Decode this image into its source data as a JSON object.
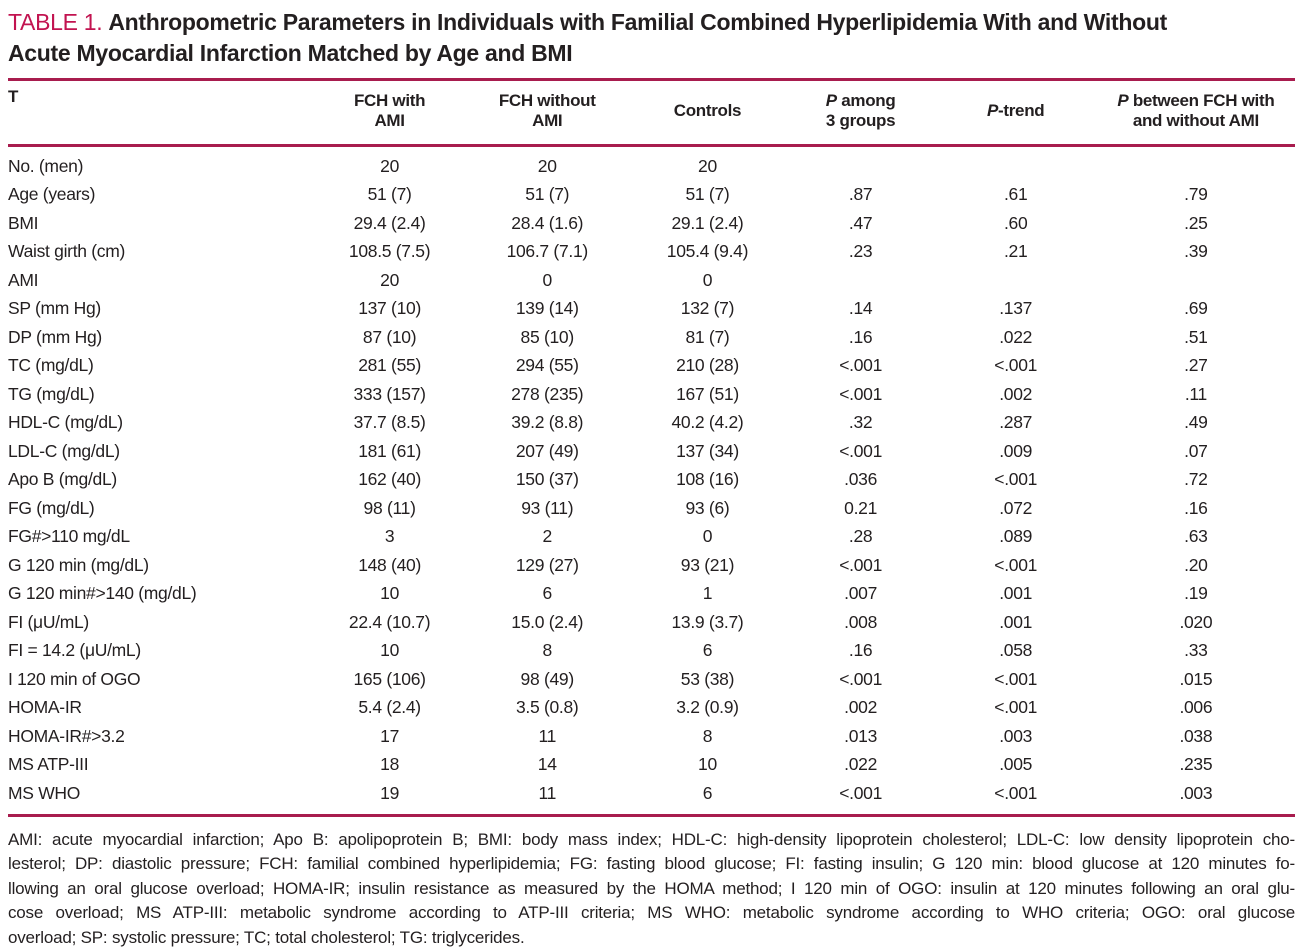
{
  "accent_color": "#a81c4e",
  "title": {
    "label": "TABLE 1.",
    "line1": "Anthropometric Parameters in Individuals with Familial Combined Hyperlipidemia With and Without",
    "line2": "Acute Myocardial Infarction Matched by Age and BMI"
  },
  "table": {
    "columns": [
      {
        "lines": [
          "T"
        ],
        "align": "left",
        "italic_p": false
      },
      {
        "lines": [
          "FCH with",
          "AMI"
        ],
        "align": "center",
        "italic_p": false
      },
      {
        "lines": [
          "FCH without",
          "AMI"
        ],
        "align": "center",
        "italic_p": false
      },
      {
        "lines": [
          "Controls"
        ],
        "align": "center",
        "italic_p": false
      },
      {
        "lines": [
          "P among",
          "3 groups"
        ],
        "align": "center",
        "italic_p": true
      },
      {
        "lines": [
          "P-trend"
        ],
        "align": "center",
        "italic_p": true
      },
      {
        "lines": [
          "P between FCH with",
          "and without AMI"
        ],
        "align": "center",
        "italic_p": true
      }
    ],
    "rows": [
      {
        "label": "No. (men)",
        "values": [
          "20",
          "20",
          "20",
          "",
          "",
          ""
        ]
      },
      {
        "label": "Age (years)",
        "values": [
          "51 (7)",
          "51 (7)",
          "51 (7)",
          ".87",
          ".61",
          ".79"
        ]
      },
      {
        "label": "BMI",
        "values": [
          "29.4 (2.4)",
          "28.4 (1.6)",
          "29.1 (2.4)",
          ".47",
          ".60",
          ".25"
        ]
      },
      {
        "label": "Waist girth (cm)",
        "values": [
          "108.5 (7.5)",
          "106.7 (7.1)",
          "105.4 (9.4)",
          ".23",
          ".21",
          ".39"
        ]
      },
      {
        "label": "AMI",
        "values": [
          "20",
          "0",
          "0",
          "",
          "",
          ""
        ]
      },
      {
        "label": "SP (mm Hg)",
        "values": [
          "137 (10)",
          "139 (14)",
          "132 (7)",
          ".14",
          ".137",
          ".69"
        ]
      },
      {
        "label": "DP (mm Hg)",
        "values": [
          "87 (10)",
          "85 (10)",
          "81 (7)",
          ".16",
          ".022",
          ".51"
        ]
      },
      {
        "label": "TC (mg/dL)",
        "values": [
          "281 (55)",
          "294 (55)",
          "210 (28)",
          "<.001",
          "<.001",
          ".27"
        ]
      },
      {
        "label": "TG (mg/dL)",
        "values": [
          "333 (157)",
          "278 (235)",
          "167 (51)",
          "<.001",
          ".002",
          ".11"
        ]
      },
      {
        "label": "HDL-C (mg/dL)",
        "values": [
          "37.7 (8.5)",
          "39.2 (8.8)",
          "40.2 (4.2)",
          ".32",
          ".287",
          ".49"
        ]
      },
      {
        "label": "LDL-C (mg/dL)",
        "values": [
          "181 (61)",
          "207 (49)",
          "137 (34)",
          "<.001",
          ".009",
          ".07"
        ]
      },
      {
        "label": "Apo B (mg/dL)",
        "values": [
          "162 (40)",
          "150 (37)",
          "108 (16)",
          ".036",
          "<.001",
          ".72"
        ]
      },
      {
        "label": "FG (mg/dL)",
        "values": [
          "98 (11)",
          "93 (11)",
          "93 (6)",
          "0.21",
          ".072",
          ".16"
        ]
      },
      {
        "label": "FG#>110 mg/dL",
        "values": [
          "3",
          "2",
          "0",
          ".28",
          ".089",
          ".63"
        ]
      },
      {
        "label": "G 120 min (mg/dL)",
        "values": [
          "148 (40)",
          "129 (27)",
          "93 (21)",
          "<.001",
          "<.001",
          ".20"
        ]
      },
      {
        "label": "G 120 min#>140 (mg/dL)",
        "values": [
          "10",
          "6",
          "1",
          ".007",
          ".001",
          ".19"
        ]
      },
      {
        "label": "FI (μU/mL)",
        "values": [
          "22.4 (10.7)",
          "15.0 (2.4)",
          "13.9 (3.7)",
          ".008",
          ".001",
          ".020"
        ]
      },
      {
        "label": "FI = 14.2 (μU/mL)",
        "values": [
          "10",
          "8",
          "6",
          ".16",
          ".058",
          ".33"
        ]
      },
      {
        "label": "I 120 min of OGO",
        "values": [
          "165 (106)",
          "98 (49)",
          "53 (38)",
          "<.001",
          "<.001",
          ".015"
        ]
      },
      {
        "label": "HOMA-IR",
        "values": [
          "5.4 (2.4)",
          "3.5 (0.8)",
          "3.2 (0.9)",
          ".002",
          "<.001",
          ".006"
        ]
      },
      {
        "label": "HOMA-IR#>3.2",
        "values": [
          "17",
          "11",
          "8",
          ".013",
          ".003",
          ".038"
        ]
      },
      {
        "label": "MS ATP-III",
        "values": [
          "18",
          "14",
          "10",
          ".022",
          ".005",
          ".235"
        ]
      },
      {
        "label": "MS WHO",
        "values": [
          "19",
          "11",
          "6",
          "<.001",
          "<.001",
          ".003"
        ]
      }
    ]
  },
  "footnote": {
    "lines": [
      "AMI: acute myocardial infarction; Apo B: apolipoprotein B; BMI: body mass index; HDL-C: high-density lipoprotein cholesterol; LDL-C: low density lipoprotein cho-",
      "lesterol; DP: diastolic pressure; FCH: familial combined hyperlipidemia; FG: fasting blood glucose; FI: fasting insulin; G 120 min: blood glucose at 120 minutes fo-",
      "llowing an oral glucose overload; HOMA-IR; insulin resistance as measured by the HOMA method; I 120 min of OGO: insulin at 120 minutes following an oral glu-",
      "cose overload; MS ATP-III: metabolic syndrome according to ATP-III criteria; MS WHO: metabolic syndrome according to WHO criteria; OGO: oral glucose",
      "overload; SP: systolic pressure; TC; total cholesterol; TG: triglycerides."
    ]
  }
}
